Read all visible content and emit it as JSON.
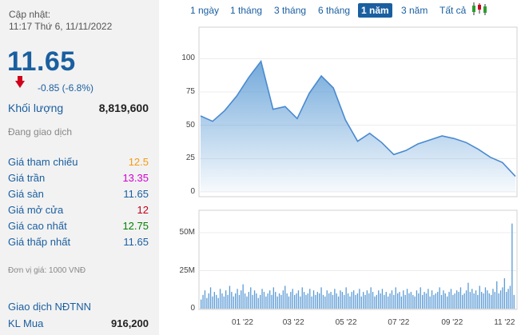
{
  "update": {
    "label": "Cập nhật:",
    "time": "11:17 Thứ 6, 11/11/2022"
  },
  "price": {
    "value": "11.65",
    "change": "-0.85 (-6.8%)",
    "direction": "down",
    "down_color": "#d0021b"
  },
  "volume": {
    "label": "Khối lượng",
    "value": "8,819,600"
  },
  "status": "Đang giao dịch",
  "stats": [
    {
      "label": "Giá tham chiếu",
      "value": "12.5",
      "color": "#f39c12"
    },
    {
      "label": "Giá trần",
      "value": "13.35",
      "color": "#d000d0"
    },
    {
      "label": "Giá sàn",
      "value": "11.65",
      "color": "#1a5fa0"
    },
    {
      "label": "Giá mở cửa",
      "value": "12",
      "color": "#c0001a"
    },
    {
      "label": "Giá cao nhất",
      "value": "12.75",
      "color": "#008000"
    },
    {
      "label": "Giá thấp nhất",
      "value": "11.65",
      "color": "#1a5fa0"
    }
  ],
  "unit_note": "Đơn vị giá: 1000 VNĐ",
  "foreign": {
    "title": "Giao dịch NĐTNN",
    "buy_label": "KL Mua",
    "buy_value": "916,200"
  },
  "tabs": [
    {
      "label": "1 ngày",
      "active": false
    },
    {
      "label": "1 tháng",
      "active": false
    },
    {
      "label": "3 tháng",
      "active": false
    },
    {
      "label": "6 tháng",
      "active": false
    },
    {
      "label": "1 năm",
      "active": true
    },
    {
      "label": "3 năm",
      "active": false
    },
    {
      "label": "Tất cả",
      "active": false
    }
  ],
  "candlestick_icon": "candlestick-chart-icon",
  "chart_data": [
    {
      "type": "area",
      "ylim": [
        0,
        120
      ],
      "yticks": [
        "100",
        "75",
        "50",
        "25",
        "0"
      ],
      "x": [
        "2021-11-11",
        "2021-11-25",
        "2021-12-09",
        "2021-12-23",
        "2022-01-06",
        "2022-01-20",
        "2022-02-03",
        "2022-02-17",
        "2022-03-03",
        "2022-03-17",
        "2022-03-31",
        "2022-04-14",
        "2022-04-28",
        "2022-05-12",
        "2022-05-26",
        "2022-06-09",
        "2022-06-23",
        "2022-07-07",
        "2022-07-21",
        "2022-08-04",
        "2022-08-18",
        "2022-09-01",
        "2022-09-15",
        "2022-09-29",
        "2022-10-13",
        "2022-10-27",
        "2022-11-11"
      ],
      "values": [
        57,
        53,
        61,
        72,
        86,
        98,
        62,
        64,
        55,
        74,
        87,
        78,
        54,
        38,
        44,
        37,
        28,
        31,
        36,
        39,
        42,
        40,
        37,
        32,
        26,
        22,
        11.65
      ],
      "color": "#5b9bd5"
    },
    {
      "type": "bar",
      "ylim": [
        0,
        60
      ],
      "yticks": [
        "50M",
        "25M",
        "0"
      ],
      "xticks": [
        "01 '22",
        "03 '22",
        "05 '22",
        "07 '22",
        "09 '22",
        "11 '22"
      ],
      "values_millions": [
        6,
        9,
        12,
        7,
        10,
        14,
        8,
        11,
        9,
        7,
        13,
        10,
        8,
        12,
        9,
        15,
        11,
        8,
        10,
        13,
        9,
        12,
        16,
        10,
        8,
        11,
        14,
        9,
        12,
        10,
        7,
        9,
        13,
        11,
        8,
        10,
        12,
        9,
        14,
        11,
        8,
        10,
        9,
        12,
        15,
        10,
        8,
        11,
        13,
        9,
        10,
        12,
        8,
        14,
        11,
        9,
        10,
        13,
        8,
        12,
        9,
        11,
        10,
        14,
        9,
        8,
        12,
        10,
        11,
        9,
        13,
        10,
        8,
        12,
        11,
        9,
        14,
        10,
        8,
        11,
        12,
        9,
        10,
        13,
        8,
        11,
        9,
        12,
        10,
        14,
        11,
        8,
        9,
        12,
        10,
        13,
        9,
        11,
        8,
        10,
        12,
        9,
        14,
        10,
        11,
        8,
        12,
        9,
        13,
        10,
        11,
        9,
        8,
        12,
        10,
        14,
        9,
        11,
        10,
        13,
        8,
        12,
        9,
        10,
        11,
        14,
        9,
        12,
        10,
        8,
        11,
        13,
        9,
        10,
        12,
        11,
        14,
        9,
        10,
        12,
        17,
        11,
        13,
        10,
        12,
        9,
        15,
        11,
        10,
        14,
        12,
        10,
        9,
        13,
        11,
        18,
        10,
        12,
        14,
        20,
        11,
        13,
        15,
        56,
        9
      ],
      "color": "#5b9bd5"
    }
  ]
}
